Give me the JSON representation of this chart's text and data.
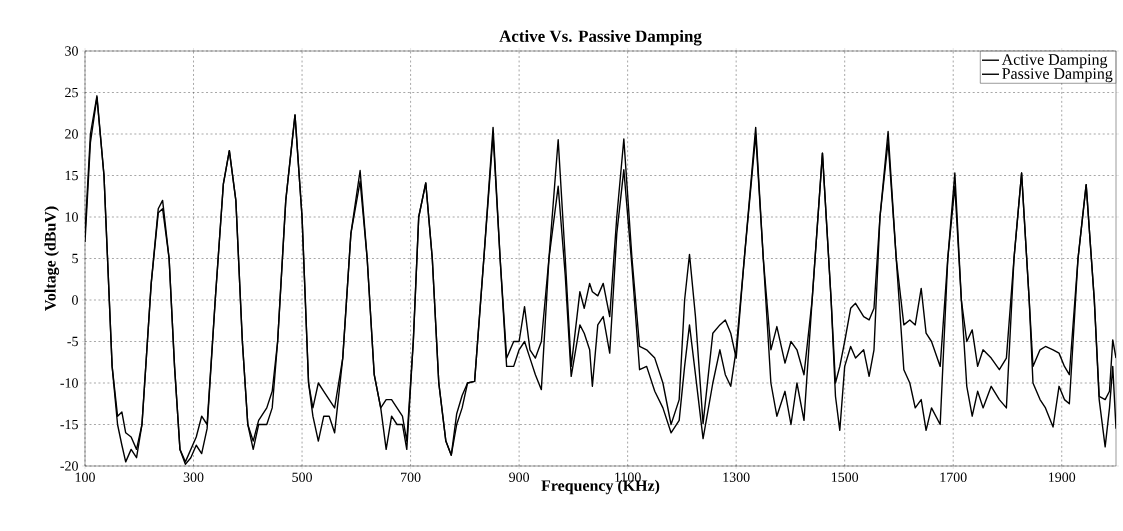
{
  "chart_data": {
    "type": "line",
    "title": "Active Vs. Passive Damping",
    "xlabel": "Frequency (KHz)",
    "ylabel": "Voltage (dBuV)",
    "x": [
      100,
      110,
      122,
      135,
      150,
      160,
      168,
      175,
      185,
      195,
      205,
      222,
      235,
      243,
      255,
      265,
      275,
      285,
      295,
      305,
      315,
      325,
      340,
      355,
      366,
      378,
      390,
      400,
      410,
      420,
      435,
      445,
      455,
      470,
      487,
      500,
      512,
      520,
      530,
      540,
      550,
      560,
      575,
      590,
      607,
      620,
      633,
      645,
      655,
      665,
      675,
      685,
      693,
      705,
      715,
      728,
      740,
      752,
      765,
      775,
      785,
      795,
      805,
      818,
      835,
      852,
      865,
      877,
      890,
      900,
      910,
      920,
      930,
      941,
      955,
      972,
      985,
      996,
      1012,
      1020,
      1030,
      1035,
      1045,
      1055,
      1067,
      1080,
      1093,
      1108,
      1122,
      1135,
      1150,
      1165,
      1180,
      1195,
      1205,
      1214,
      1225,
      1239,
      1257,
      1270,
      1280,
      1290,
      1300,
      1315,
      1336,
      1350,
      1364,
      1375,
      1390,
      1401,
      1412,
      1425,
      1440,
      1459,
      1475,
      1483,
      1491,
      1500,
      1511,
      1520,
      1535,
      1545,
      1554,
      1565,
      1580,
      1595,
      1609,
      1620,
      1630,
      1641,
      1650,
      1660,
      1676,
      1690,
      1703,
      1715,
      1725,
      1735,
      1745,
      1755,
      1770,
      1785,
      1798,
      1812,
      1826,
      1840,
      1847,
      1860,
      1870,
      1884,
      1895,
      1905,
      1914,
      1930,
      1945,
      1960,
      1969,
      1980,
      1988,
      1994,
      2000
    ],
    "series": [
      {
        "name": "Active Damping",
        "color": "#000000",
        "values": [
          7,
          19,
          24.4,
          15,
          -8,
          -15,
          -17.5,
          -19.5,
          -18,
          -19,
          -15,
          2,
          10.5,
          11,
          5,
          -8,
          -18,
          -19.8,
          -19,
          -17.5,
          -18.5,
          -15.5,
          0,
          14,
          18,
          12,
          -5,
          -15,
          -18,
          -15,
          -15,
          -13,
          -5,
          12,
          22.3,
          10,
          -10,
          -14,
          -17,
          -14,
          -14,
          -16,
          -7,
          8,
          14.3,
          5,
          -9,
          -13,
          -18,
          -14,
          -15,
          -15,
          -18,
          -5,
          10,
          14.1,
          5,
          -10,
          -17,
          -18.7,
          -13.7,
          -11.5,
          -10,
          -9.8,
          5,
          19.9,
          5,
          -8,
          -8,
          -6,
          -5,
          -7,
          -9,
          -10.8,
          5,
          13.7,
          3,
          -9.2,
          -3,
          -4,
          -6,
          -10.4,
          -3,
          -2,
          -6.4,
          8,
          15.7,
          4,
          -8.4,
          -8,
          -11,
          -13,
          -16,
          -14.5,
          -8,
          -3,
          -9,
          -16.7,
          -10,
          -6,
          -9,
          -10.4,
          -6,
          5,
          19.9,
          5,
          -10,
          -14,
          -11,
          -15,
          -10,
          -14.5,
          0,
          17.7,
          0,
          -11.6,
          -15.7,
          -8,
          -5.6,
          -7,
          -6,
          -9.2,
          -6,
          10,
          19.1,
          5,
          -8.4,
          -10,
          -13,
          -12,
          -15.7,
          -13,
          -15,
          5,
          13.7,
          0,
          -10.4,
          -14,
          -11,
          -13,
          -10.4,
          -12,
          -13,
          5,
          15.3,
          0,
          -10,
          -12,
          -13,
          -15.3,
          -10.4,
          -12,
          -12.5,
          5,
          13.9,
          0,
          -12,
          -17.7,
          -13,
          -8,
          -15.5
        ]
      },
      {
        "name": "Passive Damping",
        "color": "#000000",
        "values": [
          8,
          20,
          24.6,
          15,
          -8,
          -14,
          -13.5,
          -16,
          -16.5,
          -18,
          -15,
          2,
          11,
          12,
          5,
          -8,
          -18,
          -19.5,
          -18,
          -16.5,
          -14,
          -15,
          0,
          14,
          18,
          12,
          -5,
          -15,
          -17,
          -14.5,
          -13,
          -11,
          -5,
          12,
          22.3,
          10,
          -10,
          -13,
          -10,
          -11,
          -12,
          -13,
          -7,
          8,
          15.6,
          5,
          -9,
          -13,
          -12,
          -12,
          -13,
          -14,
          -17,
          -5,
          10,
          14.1,
          5,
          -10,
          -17,
          -18.7,
          -15,
          -13,
          -10,
          -9.8,
          5,
          20.8,
          5,
          -7,
          -5,
          -5,
          -0.8,
          -6,
          -7,
          -5,
          5,
          19.3,
          5,
          -8,
          1,
          -1,
          2,
          1,
          0.5,
          2,
          -2,
          10,
          19.4,
          5,
          -5.6,
          -6,
          -7,
          -10,
          -15,
          -12,
          0,
          5.5,
          -2,
          -14.9,
          -4,
          -3,
          -2.4,
          -4,
          -7,
          5,
          20.8,
          5,
          -6,
          -3.2,
          -7.6,
          -5,
          -6,
          -9,
          0,
          17.7,
          0,
          -10,
          -8,
          -5,
          -1,
          -0.4,
          -2,
          -2.4,
          -1,
          10,
          20.3,
          5,
          -3,
          -2.4,
          -3,
          1.4,
          -4,
          -5,
          -8,
          5,
          15.3,
          0,
          -5,
          -3.6,
          -8,
          -6,
          -7,
          -8.4,
          -7,
          5,
          15.3,
          0,
          -8,
          -6,
          -5.6,
          -6,
          -6.4,
          -8,
          -9,
          5,
          13.9,
          0,
          -11.6,
          -12,
          -11,
          -4.8,
          -7
        ]
      }
    ],
    "xlim": [
      100,
      2000
    ],
    "xticks": [
      100,
      300,
      500,
      700,
      900,
      1100,
      1300,
      1500,
      1700,
      1900
    ],
    "ylim": [
      -20,
      30
    ],
    "yticks": [
      -20,
      -15,
      -10,
      -5,
      0,
      5,
      10,
      15,
      20,
      25,
      30
    ],
    "grid": true,
    "legend": "top right"
  }
}
